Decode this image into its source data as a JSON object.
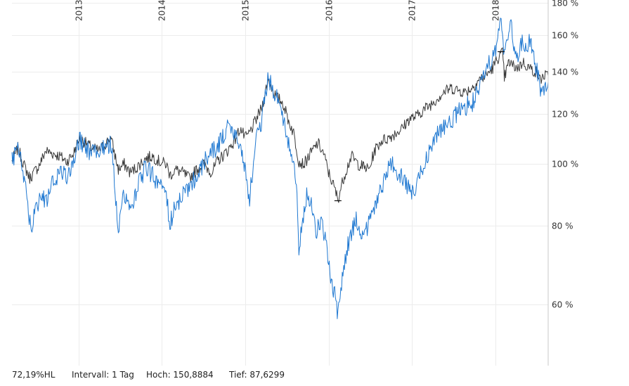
{
  "chart_data": {
    "type": "line",
    "yscale": "log",
    "grid": true,
    "ylim": [
      48,
      180
    ],
    "xlim": [
      "2012-03-15",
      "2018-08-20"
    ],
    "x_ticks": [
      "2013",
      "2014",
      "2015",
      "2016",
      "2017",
      "2018"
    ],
    "y_ticks": [
      {
        "value": 180,
        "label": "180 %"
      },
      {
        "value": 160,
        "label": "160 %"
      },
      {
        "value": 140,
        "label": "140 %"
      },
      {
        "value": 120,
        "label": "120 %"
      },
      {
        "value": 100,
        "label": "100 %"
      },
      {
        "value": 80,
        "label": "80 %"
      },
      {
        "value": 60,
        "label": "60 %"
      }
    ],
    "series": [
      {
        "color": "#3a3a3a",
        "points": [
          [
            "2012-03-15",
            101
          ],
          [
            "2012-04-10",
            106
          ],
          [
            "2012-05-05",
            100
          ],
          [
            "2012-06-01",
            95
          ],
          [
            "2012-06-20",
            97
          ],
          [
            "2012-07-15",
            100
          ],
          [
            "2012-08-10",
            105
          ],
          [
            "2012-09-10",
            104
          ],
          [
            "2012-10-10",
            103
          ],
          [
            "2012-11-10",
            101
          ],
          [
            "2012-12-10",
            104
          ],
          [
            "2013-01-05",
            110
          ],
          [
            "2013-02-01",
            108
          ],
          [
            "2013-03-01",
            106
          ],
          [
            "2013-04-01",
            105
          ],
          [
            "2013-05-01",
            108
          ],
          [
            "2013-05-22",
            110
          ],
          [
            "2013-06-24",
            98
          ],
          [
            "2013-07-20",
            100
          ],
          [
            "2013-08-15",
            97
          ],
          [
            "2013-09-15",
            99
          ],
          [
            "2013-10-20",
            102
          ],
          [
            "2013-11-20",
            103
          ],
          [
            "2013-12-20",
            101
          ],
          [
            "2014-01-20",
            100
          ],
          [
            "2014-02-05",
            96
          ],
          [
            "2014-03-01",
            98
          ],
          [
            "2014-04-01",
            97
          ],
          [
            "2014-05-01",
            95
          ],
          [
            "2014-06-01",
            98
          ],
          [
            "2014-07-01",
            100
          ],
          [
            "2014-08-08",
            97
          ],
          [
            "2014-09-01",
            101
          ],
          [
            "2014-10-15",
            105
          ],
          [
            "2014-11-15",
            109
          ],
          [
            "2014-12-10",
            114
          ],
          [
            "2015-01-01",
            110
          ],
          [
            "2015-01-20",
            112
          ],
          [
            "2015-02-15",
            117
          ],
          [
            "2015-03-15",
            123
          ],
          [
            "2015-04-12",
            136
          ],
          [
            "2015-05-15",
            128
          ],
          [
            "2015-06-15",
            125
          ],
          [
            "2015-07-10",
            117
          ],
          [
            "2015-08-01",
            112
          ],
          [
            "2015-08-24",
            101
          ],
          [
            "2015-09-15",
            100
          ],
          [
            "2015-10-15",
            104
          ],
          [
            "2015-11-15",
            108
          ],
          [
            "2015-12-10",
            104
          ],
          [
            "2016-01-01",
            97
          ],
          [
            "2016-01-25",
            92
          ],
          [
            "2016-02-11",
            88
          ],
          [
            "2016-03-10",
            96
          ],
          [
            "2016-04-10",
            103
          ],
          [
            "2016-05-10",
            100
          ],
          [
            "2016-06-27",
            98
          ],
          [
            "2016-07-20",
            105
          ],
          [
            "2016-08-20",
            109
          ],
          [
            "2016-09-20",
            110
          ],
          [
            "2016-10-20",
            112
          ],
          [
            "2016-11-20",
            114
          ],
          [
            "2016-12-20",
            118
          ],
          [
            "2017-01-20",
            119
          ],
          [
            "2017-02-20",
            122
          ],
          [
            "2017-03-20",
            124
          ],
          [
            "2017-04-20",
            127
          ],
          [
            "2017-05-20",
            130
          ],
          [
            "2017-06-20",
            132
          ],
          [
            "2017-07-20",
            131
          ],
          [
            "2017-08-20",
            130
          ],
          [
            "2017-09-20",
            132
          ],
          [
            "2017-10-20",
            136
          ],
          [
            "2017-11-20",
            138
          ],
          [
            "2017-12-20",
            142
          ],
          [
            "2018-01-15",
            148
          ],
          [
            "2018-02-01",
            150
          ],
          [
            "2018-02-09",
            137
          ],
          [
            "2018-03-01",
            145
          ],
          [
            "2018-03-20",
            143
          ],
          [
            "2018-04-10",
            142
          ],
          [
            "2018-05-01",
            145
          ],
          [
            "2018-05-20",
            143
          ],
          [
            "2018-06-10",
            141
          ],
          [
            "2018-06-28",
            140
          ],
          [
            "2018-07-15",
            136
          ],
          [
            "2018-08-01",
            138
          ],
          [
            "2018-08-20",
            138
          ]
        ]
      },
      {
        "color": "#1f78d1",
        "points": [
          [
            "2012-03-15",
            102
          ],
          [
            "2012-04-10",
            105
          ],
          [
            "2012-05-05",
            97
          ],
          [
            "2012-05-20",
            88
          ],
          [
            "2012-06-05",
            79
          ],
          [
            "2012-06-25",
            84
          ],
          [
            "2012-07-20",
            90
          ],
          [
            "2012-08-10",
            87
          ],
          [
            "2012-09-10",
            94
          ],
          [
            "2012-10-10",
            97
          ],
          [
            "2012-11-10",
            96
          ],
          [
            "2012-12-10",
            101
          ],
          [
            "2013-01-05",
            110
          ],
          [
            "2013-02-01",
            106
          ],
          [
            "2013-03-01",
            104
          ],
          [
            "2013-04-01",
            106
          ],
          [
            "2013-05-22",
            108
          ],
          [
            "2013-06-10",
            92
          ],
          [
            "2013-06-24",
            77
          ],
          [
            "2013-07-10",
            88
          ],
          [
            "2013-08-01",
            90
          ],
          [
            "2013-08-20",
            83
          ],
          [
            "2013-09-15",
            92
          ],
          [
            "2013-10-15",
            98
          ],
          [
            "2013-11-15",
            97
          ],
          [
            "2013-12-15",
            93
          ],
          [
            "2014-01-20",
            90
          ],
          [
            "2014-02-05",
            80
          ],
          [
            "2014-03-01",
            86
          ],
          [
            "2014-04-01",
            89
          ],
          [
            "2014-05-01",
            92
          ],
          [
            "2014-06-01",
            96
          ],
          [
            "2014-07-01",
            100
          ],
          [
            "2014-08-01",
            104
          ],
          [
            "2014-09-01",
            106
          ],
          [
            "2014-10-15",
            114
          ],
          [
            "2014-11-15",
            112
          ],
          [
            "2014-12-16",
            105
          ],
          [
            "2015-01-05",
            96
          ],
          [
            "2015-01-20",
            88
          ],
          [
            "2015-02-15",
            108
          ],
          [
            "2015-03-15",
            117
          ],
          [
            "2015-04-10",
            136
          ],
          [
            "2015-05-10",
            130
          ],
          [
            "2015-06-10",
            122
          ],
          [
            "2015-07-01",
            110
          ],
          [
            "2015-07-20",
            103
          ],
          [
            "2015-08-10",
            96
          ],
          [
            "2015-08-24",
            74
          ],
          [
            "2015-09-10",
            82
          ],
          [
            "2015-09-30",
            90
          ],
          [
            "2015-10-20",
            86
          ],
          [
            "2015-11-10",
            78
          ],
          [
            "2015-11-30",
            82
          ],
          [
            "2015-12-20",
            75
          ],
          [
            "2016-01-10",
            66
          ],
          [
            "2016-01-25",
            63
          ],
          [
            "2016-02-11",
            57
          ],
          [
            "2016-03-01",
            66
          ],
          [
            "2016-03-20",
            73
          ],
          [
            "2016-04-10",
            78
          ],
          [
            "2016-05-01",
            82
          ],
          [
            "2016-05-20",
            78
          ],
          [
            "2016-06-15",
            79
          ],
          [
            "2016-07-10",
            84
          ],
          [
            "2016-08-10",
            90
          ],
          [
            "2016-09-10",
            96
          ],
          [
            "2016-10-01",
            101
          ],
          [
            "2016-10-20",
            98
          ],
          [
            "2016-11-15",
            96
          ],
          [
            "2016-12-10",
            92
          ],
          [
            "2017-01-05",
            90
          ],
          [
            "2017-02-01",
            95
          ],
          [
            "2017-03-01",
            102
          ],
          [
            "2017-04-01",
            108
          ],
          [
            "2017-05-01",
            113
          ],
          [
            "2017-06-01",
            116
          ],
          [
            "2017-07-01",
            118
          ],
          [
            "2017-08-01",
            122
          ],
          [
            "2017-09-01",
            124
          ],
          [
            "2017-10-01",
            126
          ],
          [
            "2017-11-01",
            134
          ],
          [
            "2017-12-01",
            144
          ],
          [
            "2018-01-05",
            152
          ],
          [
            "2018-01-26",
            170
          ],
          [
            "2018-02-09",
            150
          ],
          [
            "2018-02-25",
            160
          ],
          [
            "2018-03-10",
            166
          ],
          [
            "2018-03-25",
            152
          ],
          [
            "2018-04-10",
            148
          ],
          [
            "2018-04-25",
            156
          ],
          [
            "2018-05-10",
            152
          ],
          [
            "2018-06-01",
            156
          ],
          [
            "2018-06-15",
            150
          ],
          [
            "2018-07-05",
            138
          ],
          [
            "2018-07-20",
            130
          ],
          [
            "2018-08-05",
            132
          ],
          [
            "2018-08-20",
            135
          ]
        ]
      }
    ],
    "markers": [
      {
        "label": "high",
        "date": "2018-01-26",
        "value": 150.8884
      },
      {
        "label": "low",
        "date": "2016-02-11",
        "value": 87.6299
      }
    ]
  },
  "footer": {
    "range": "72,19%HL",
    "interval": "Intervall: 1 Tag",
    "high": "Hoch: 150,8884",
    "low": "Tief: 87,6299"
  }
}
